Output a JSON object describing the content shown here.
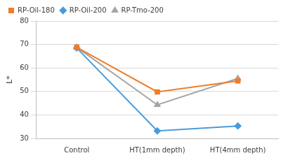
{
  "chart_data": {
    "type": "line",
    "y_label": "L*",
    "categories": [
      "Control",
      "HT(1mm depth)",
      "HT(4mm depth)"
    ],
    "series": [
      {
        "name": "RP-Oil-180",
        "color": "#f07d28",
        "marker": "square",
        "values": [
          68.8,
          49.8,
          54.5
        ]
      },
      {
        "name": "RP-Oil-200",
        "color": "#4a9bdb",
        "marker": "diamond",
        "values": [
          68.5,
          33.2,
          35.3
        ]
      },
      {
        "name": "RP-Tmo-200",
        "color": "#a5a5a5",
        "marker": "triangle",
        "values": [
          68.8,
          44.3,
          55.5
        ]
      }
    ],
    "ylim": [
      30,
      80
    ],
    "yticks": [
      30,
      40,
      50,
      60,
      70,
      80
    ],
    "grid": true,
    "legend": "upper left"
  }
}
